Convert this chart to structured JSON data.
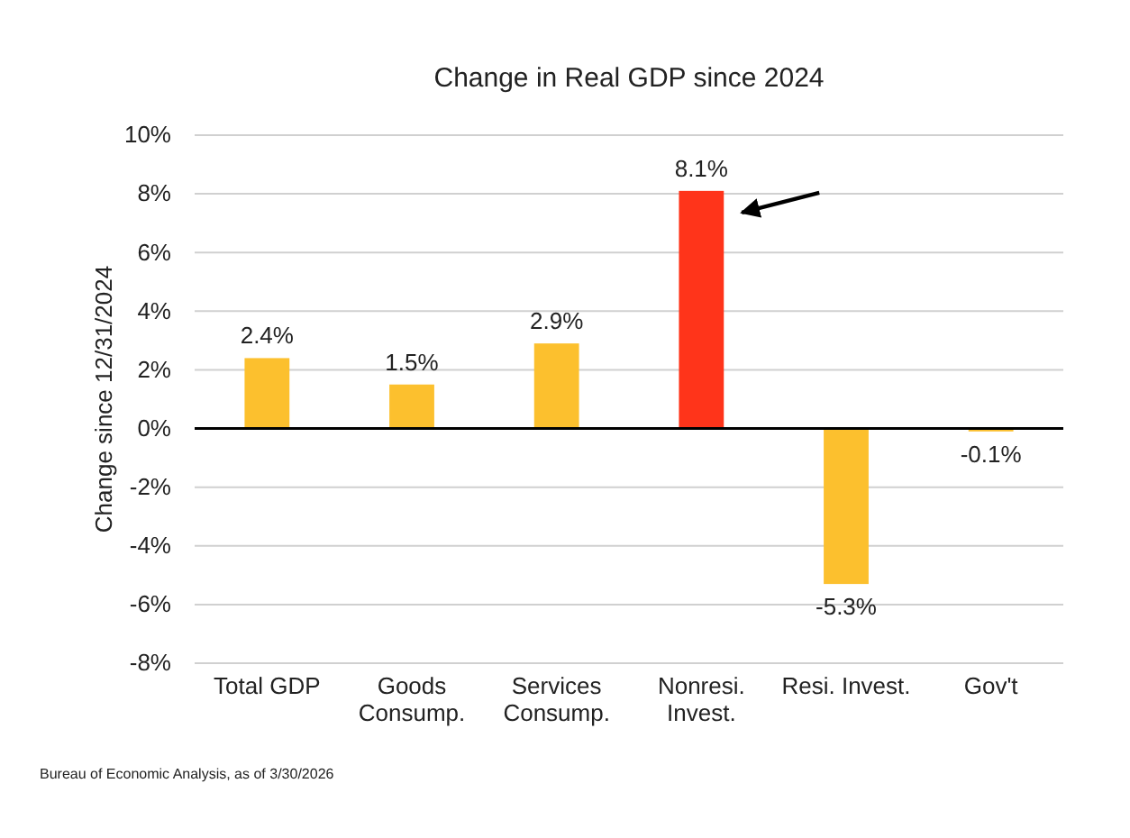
{
  "chart_data": {
    "type": "bar",
    "title": "Change in Real GDP since 2024",
    "ylabel": "Change since 12/31/2024",
    "categories": [
      "Total GDP",
      "Goods Consump.",
      "Services Consump.",
      "Nonresi. Invest.",
      "Resi. Invest.",
      "Gov't"
    ],
    "values": [
      2.4,
      1.5,
      2.9,
      8.1,
      -5.3,
      -0.1
    ],
    "value_labels": [
      "2.4%",
      "1.5%",
      "2.9%",
      "8.1%",
      "-5.3%",
      "-0.1%"
    ],
    "colors": [
      "#fcc02e",
      "#fcc02e",
      "#fcc02e",
      "#ff341a",
      "#fcc02e",
      "#fcc02e"
    ],
    "ylim": [
      -8,
      10
    ],
    "yticks": [
      {
        "value": -8,
        "label": "-8%"
      },
      {
        "value": -6,
        "label": "-6%"
      },
      {
        "value": -4,
        "label": "-4%"
      },
      {
        "value": -2,
        "label": "-2%"
      },
      {
        "value": 0,
        "label": "0%"
      },
      {
        "value": 2,
        "label": "2%"
      },
      {
        "value": 4,
        "label": "4%"
      },
      {
        "value": 6,
        "label": "6%"
      },
      {
        "value": 8,
        "label": "8%"
      },
      {
        "value": 10,
        "label": "10%"
      }
    ],
    "grid": "y",
    "annotations": [
      "Bureau of Economic Analysis, as of 3/30/2026"
    ]
  }
}
